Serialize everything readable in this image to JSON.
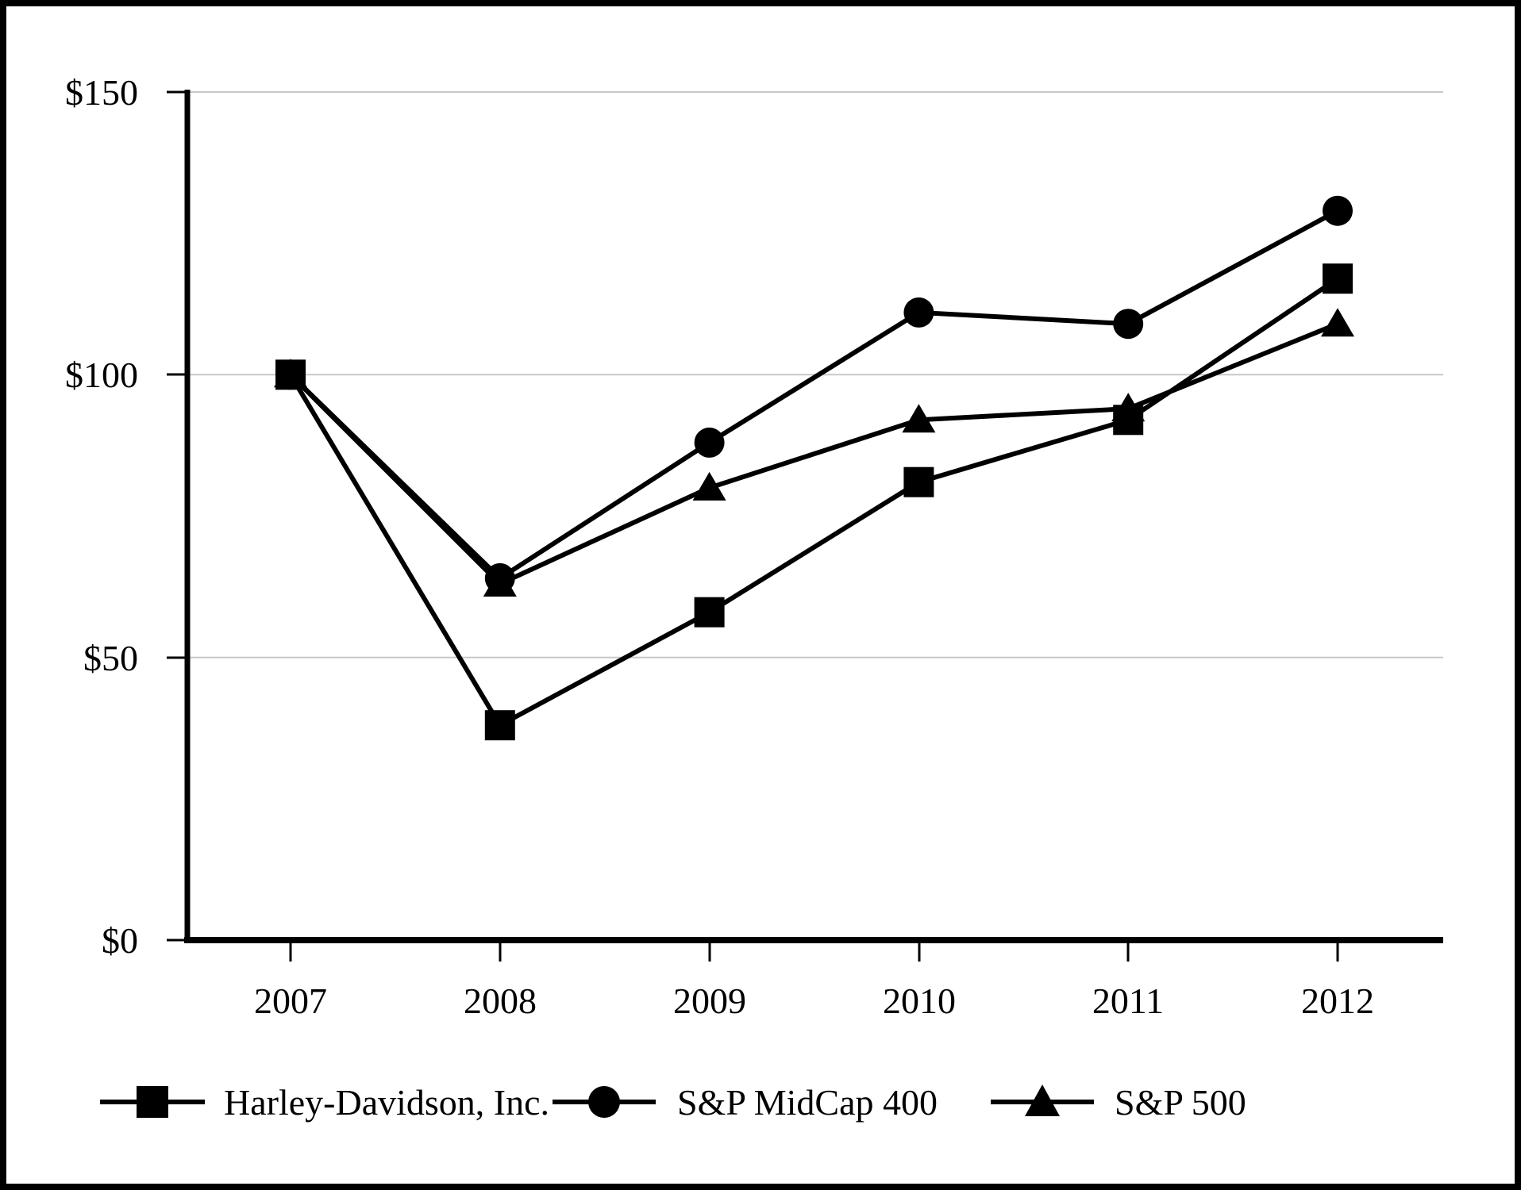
{
  "chart_data": {
    "type": "line",
    "x": [
      2007,
      2008,
      2009,
      2010,
      2011,
      2012
    ],
    "x_labels": [
      "2007",
      "2008",
      "2009",
      "2010",
      "2011",
      "2012"
    ],
    "series": [
      {
        "name": "Harley-Davidson, Inc.",
        "marker": "square",
        "values": [
          100,
          38,
          58,
          81,
          92,
          117
        ]
      },
      {
        "name": "S&P MidCap 400",
        "marker": "circle",
        "values": [
          100,
          64,
          88,
          111,
          109,
          129
        ]
      },
      {
        "name": "S&P 500",
        "marker": "triangle",
        "values": [
          100,
          63,
          80,
          92,
          94,
          109
        ]
      }
    ],
    "y_tick_labels_top_down": [
      "$150",
      "$100",
      "$50",
      "$0"
    ],
    "y_tick_values": [
      0,
      50,
      100,
      150
    ],
    "ylim": [
      0,
      150
    ],
    "grid": "horizontal-only",
    "legend_position": "bottom",
    "line_color": "#000000",
    "grid_color": "#c8c8c8",
    "background_color": "#ffffff",
    "frame_color": "#000000"
  }
}
